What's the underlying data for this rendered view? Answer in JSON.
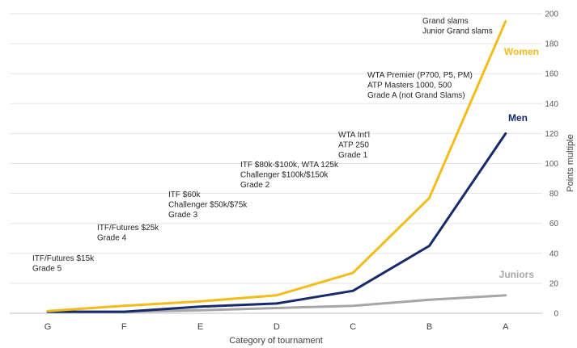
{
  "chart_data": {
    "type": "line",
    "xlabel": "Category of tournament",
    "ylabel": "Points multiple",
    "categories": [
      "G",
      "F",
      "E",
      "D",
      "C",
      "B",
      "A"
    ],
    "ylim": [
      0,
      200
    ],
    "yticks": [
      0,
      20,
      40,
      60,
      80,
      100,
      120,
      140,
      160,
      180,
      200
    ],
    "y_axis_side": "right",
    "grid": true,
    "series": [
      {
        "name": "Women",
        "color": "#F2BC1B",
        "values": [
          1.5,
          5,
          8,
          12,
          27,
          77,
          195
        ]
      },
      {
        "name": "Men",
        "color": "#172B6B",
        "values": [
          1,
          1,
          4.5,
          6.5,
          15,
          45,
          120
        ]
      },
      {
        "name": "Juniors",
        "color": "#A6A6A6",
        "values": [
          1,
          1,
          2,
          3.5,
          5,
          9,
          12
        ]
      }
    ],
    "annotations": [
      {
        "category": "G",
        "lines": [
          "ITF/Futures $15k",
          "Grade 5"
        ]
      },
      {
        "category": "F",
        "lines": [
          "ITF/Futures $25k",
          "Grade 4"
        ]
      },
      {
        "category": "E",
        "lines": [
          "ITF $60k",
          "Challenger $50k/$75k",
          "Grade 3"
        ]
      },
      {
        "category": "D",
        "lines": [
          "ITF $80k-$100k, WTA 125k",
          "Challenger $100k/$150k",
          "Grade 2"
        ]
      },
      {
        "category": "C",
        "lines": [
          "WTA Int'l",
          "ATP 250",
          "Grade 1"
        ]
      },
      {
        "category": "B",
        "lines": [
          "WTA Premier (P700, P5, PM)",
          "ATP Masters 1000, 500",
          "Grade A (not Grand Slams)"
        ]
      },
      {
        "category": "A",
        "lines": [
          "Grand slams",
          "Junior Grand slams"
        ]
      }
    ]
  }
}
